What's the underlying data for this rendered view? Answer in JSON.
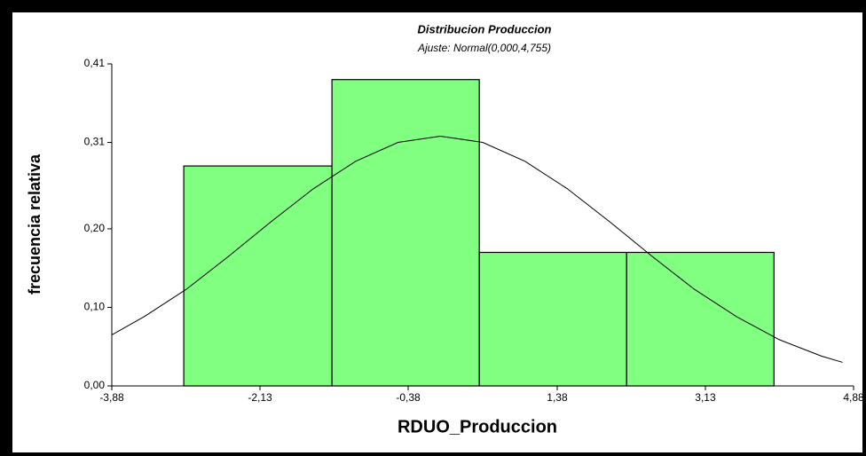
{
  "chart_data": {
    "type": "histogram",
    "title": "Distribucion Produccion",
    "subtitle": "Ajuste: Normal(0,000,4,755)",
    "x_label": "RDUO_Produccion",
    "y_label": "frecuencia relativa",
    "bins": [
      -3.03,
      -1.28,
      0.46,
      2.2,
      3.94
    ],
    "values": [
      0.28,
      0.39,
      0.17,
      0.17
    ],
    "color": "#80ff80",
    "curve": {
      "x": [
        -3.88,
        -3.5,
        -3,
        -2.5,
        -2,
        -1.5,
        -1,
        -0.5,
        0,
        0.5,
        1,
        1.5,
        2,
        2.5,
        3,
        3.5,
        4,
        4.5,
        4.75
      ],
      "y": [
        0.065,
        0.088,
        0.123,
        0.165,
        0.209,
        0.251,
        0.286,
        0.31,
        0.318,
        0.31,
        0.286,
        0.251,
        0.209,
        0.165,
        0.123,
        0.088,
        0.059,
        0.038,
        0.03
      ]
    },
    "xlim": [
      -3.88,
      4.88
    ],
    "xticks": [
      {
        "value": -3.88,
        "label": "-3,88"
      },
      {
        "value": -2.13,
        "label": "-2,13"
      },
      {
        "value": -0.38,
        "label": "-0,38"
      },
      {
        "value": 1.38,
        "label": "1,38"
      },
      {
        "value": 3.13,
        "label": "3,13"
      },
      {
        "value": 4.88,
        "label": "4,88"
      }
    ],
    "ylim": [
      0,
      0.41
    ],
    "yticks": [
      {
        "value": 0,
        "label": "0,00"
      },
      {
        "value": 0.1,
        "label": "0,10"
      },
      {
        "value": 0.2,
        "label": "0,20"
      },
      {
        "value": 0.31,
        "label": "0,31"
      },
      {
        "value": 0.41,
        "label": "0,41"
      }
    ]
  }
}
